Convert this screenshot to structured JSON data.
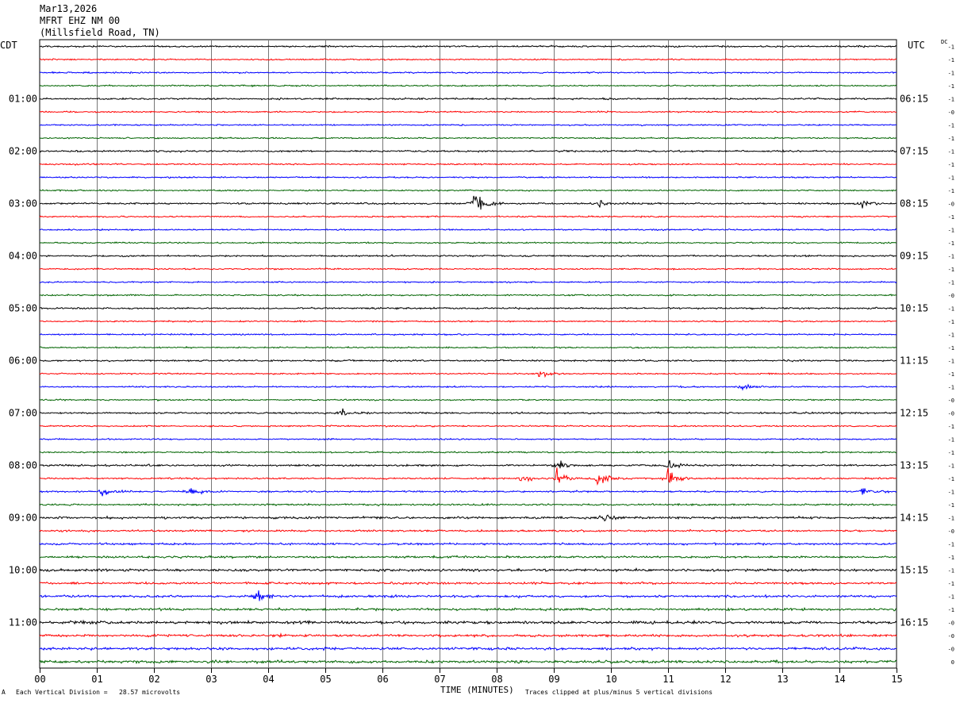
{
  "header": {
    "date": "Mar13,2026",
    "station": "MFRT EHZ NM 00",
    "location": "(Millsfield Road, TN)"
  },
  "left_tz": "CDT",
  "right_tz": "UTC",
  "dc_label": "DC",
  "footer": {
    "scale": "Each Vertical Division =   28.57 microvolts",
    "clip": "Traces clipped at plus/minus 5 vertical divisions",
    "mark": "A"
  },
  "chart_data": {
    "type": "line",
    "title": "",
    "xlabel": "TIME (MINUTES)",
    "xlim": [
      0,
      15
    ],
    "x_ticks": [
      "00",
      "01",
      "02",
      "03",
      "04",
      "05",
      "06",
      "07",
      "08",
      "09",
      "10",
      "11",
      "12",
      "13",
      "14",
      "15"
    ],
    "trace_count": 48,
    "trace_colors": [
      "#000000",
      "#ff0000",
      "#0000ff",
      "#006400"
    ],
    "left_hour_labels": [
      "01:00",
      "02:00",
      "03:00",
      "04:00",
      "05:00",
      "06:00",
      "07:00",
      "08:00",
      "09:00",
      "10:00",
      "11:00"
    ],
    "right_hour_labels": [
      "06:15",
      "07:15",
      "08:15",
      "09:15",
      "10:15",
      "11:15",
      "12:15",
      "13:15",
      "14:15",
      "15:15",
      "16:15"
    ],
    "dc_offsets": [
      "-1",
      "-1",
      "-1",
      "-1",
      "-1",
      "-0",
      "-1",
      "-1",
      "-1",
      "-1",
      "-1",
      "-1",
      "-0",
      "-1",
      "-1",
      "-1",
      "-1",
      "-1",
      "-1",
      "-0",
      "-1",
      "-1",
      "-1",
      "-1",
      "-1",
      "-1",
      "-1",
      "-0",
      "-0",
      "-1",
      "-1",
      "-1",
      "-1",
      "-1",
      "-1",
      "-1",
      "-1",
      "-0",
      "-1",
      "-1",
      "-1",
      "-1",
      "-1",
      "-1",
      "-0",
      "-0",
      "-0",
      "0"
    ],
    "amplitude_scale": "28.57 microvolts per vertical division",
    "events": [
      {
        "trace": 12,
        "minute": 7.62,
        "strength": 7.0
      },
      {
        "trace": 12,
        "minute": 14.4,
        "strength": 1.6
      },
      {
        "trace": 12,
        "minute": 9.8,
        "strength": 1.2
      },
      {
        "trace": 25,
        "minute": 8.75,
        "strength": 1.4
      },
      {
        "trace": 26,
        "minute": 12.3,
        "strength": 1.4
      },
      {
        "trace": 28,
        "minute": 5.3,
        "strength": 1.3
      },
      {
        "trace": 32,
        "minute": 9.1,
        "strength": 3.2
      },
      {
        "trace": 32,
        "minute": 11.0,
        "strength": 2.6
      },
      {
        "trace": 33,
        "minute": 8.4,
        "strength": 2.0
      },
      {
        "trace": 33,
        "minute": 9.05,
        "strength": 3.4
      },
      {
        "trace": 33,
        "minute": 9.75,
        "strength": 3.0
      },
      {
        "trace": 33,
        "minute": 11.0,
        "strength": 3.0
      },
      {
        "trace": 34,
        "minute": 1.1,
        "strength": 1.8
      },
      {
        "trace": 34,
        "minute": 2.65,
        "strength": 1.8
      },
      {
        "trace": 34,
        "minute": 14.4,
        "strength": 1.8
      },
      {
        "trace": 36,
        "minute": 9.85,
        "strength": 1.6
      },
      {
        "trace": 42,
        "minute": 3.8,
        "strength": 3.0
      }
    ]
  }
}
